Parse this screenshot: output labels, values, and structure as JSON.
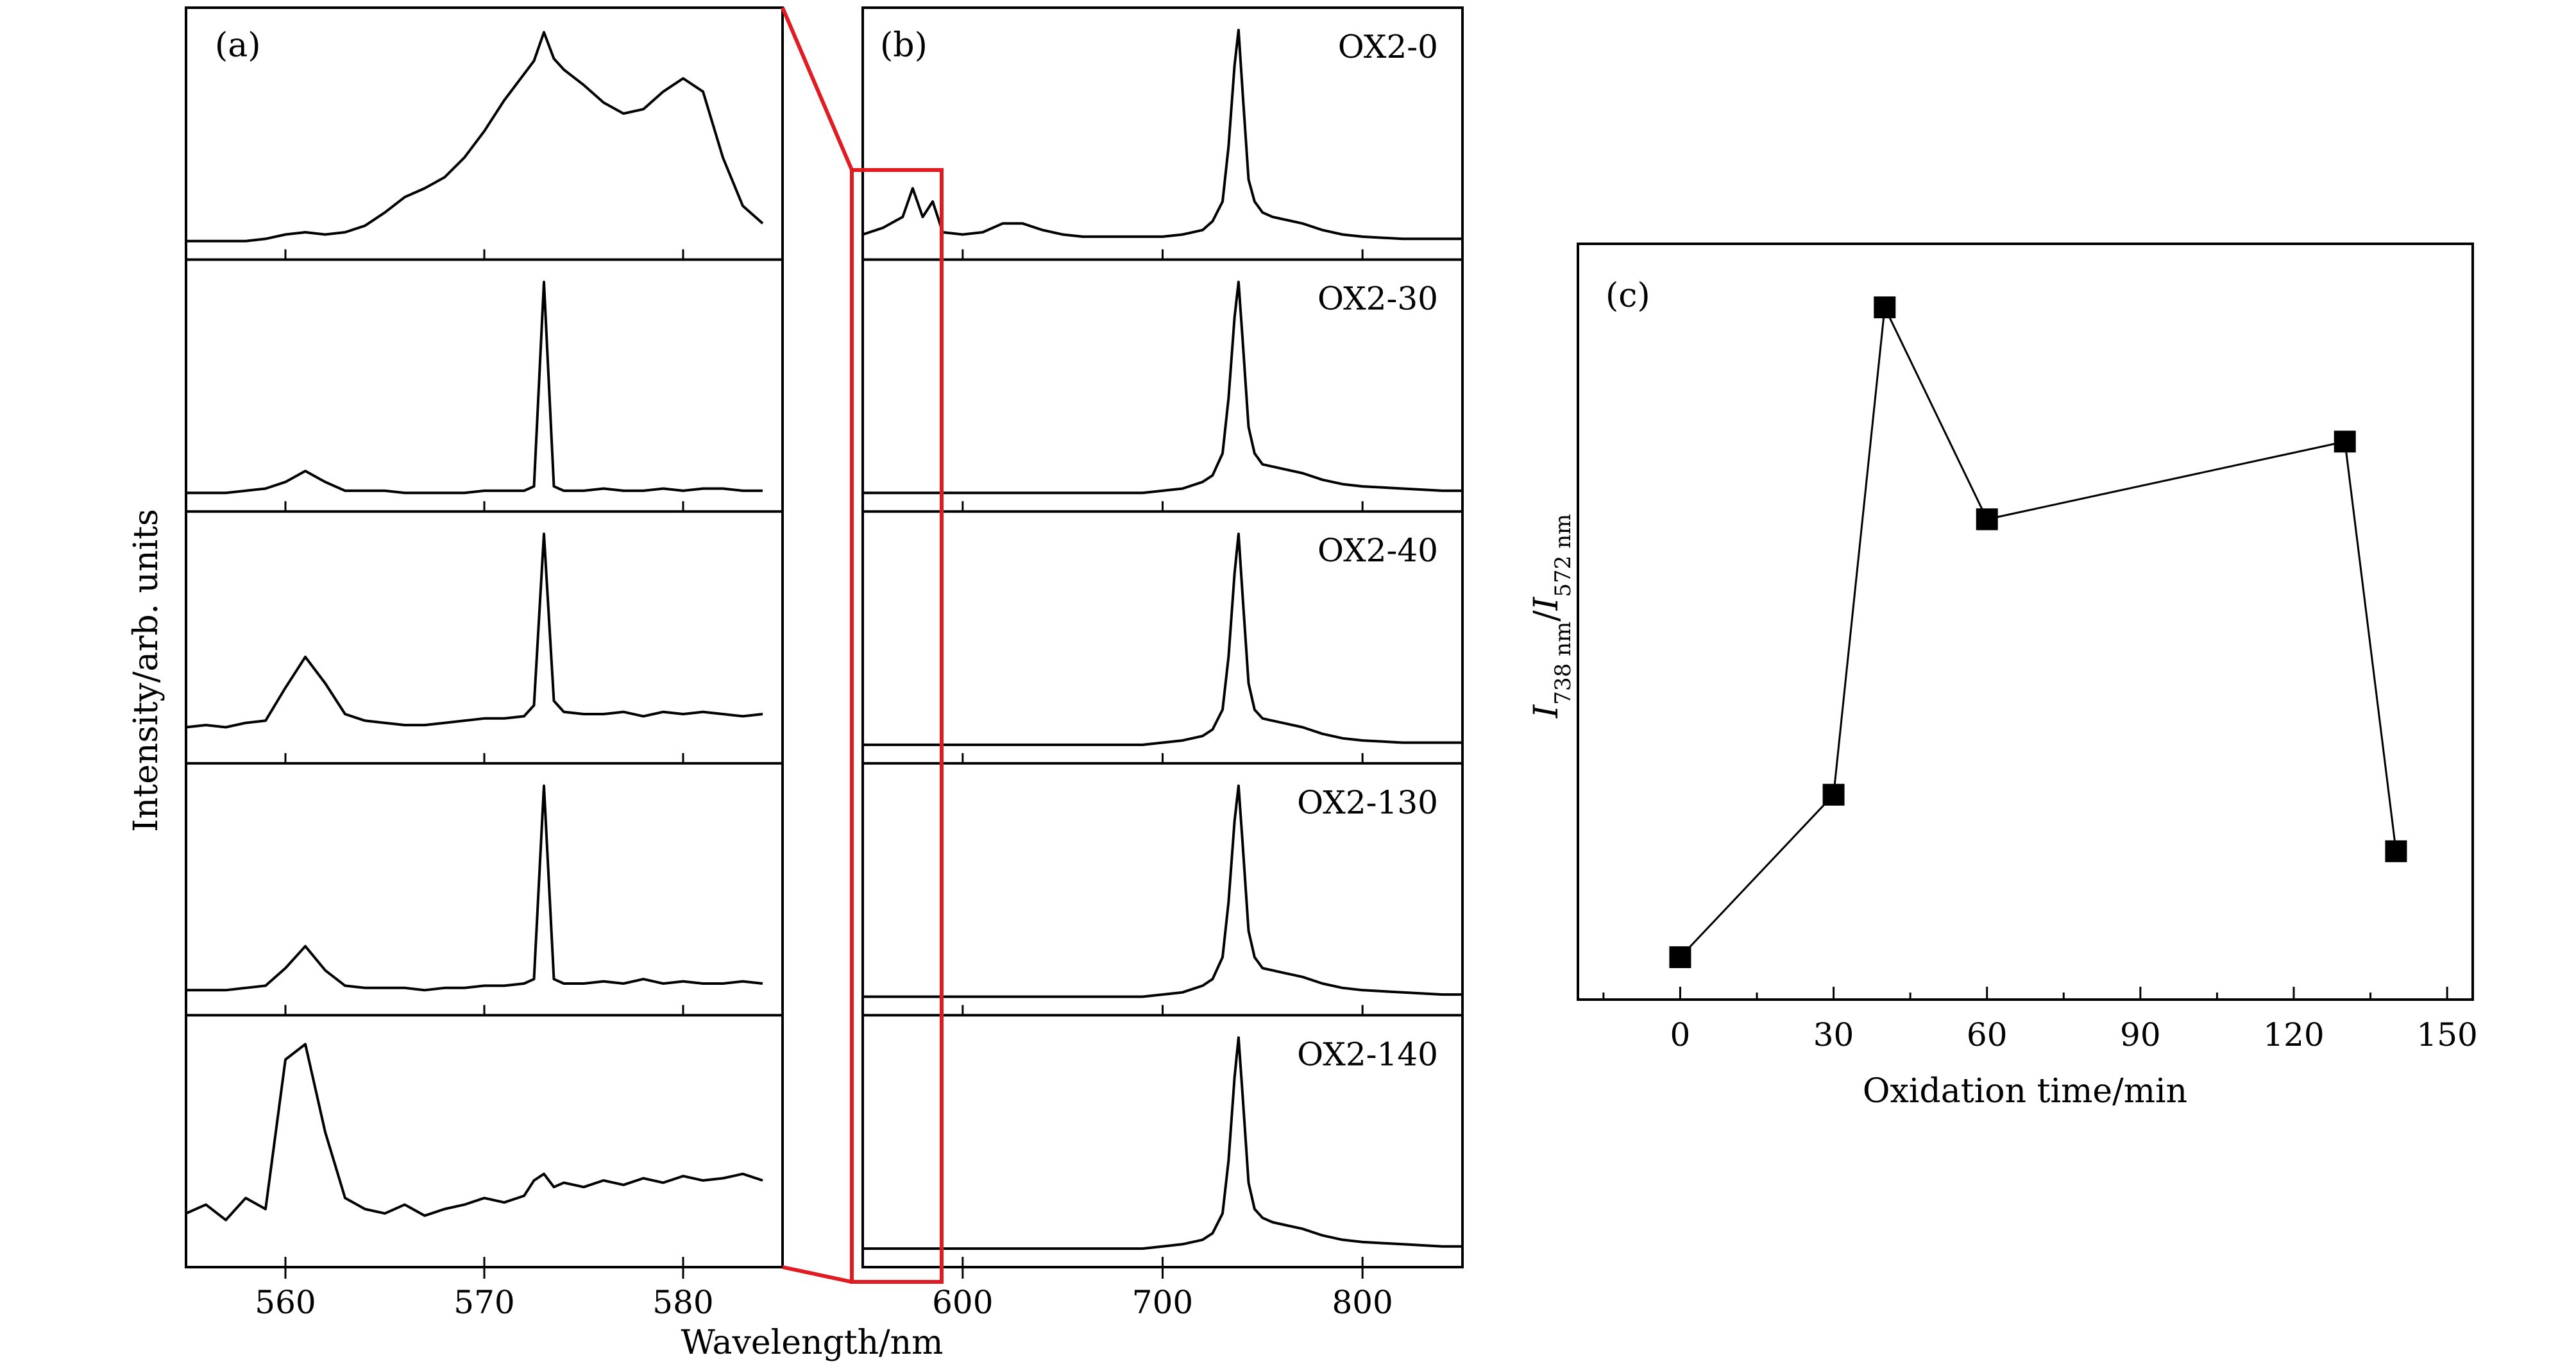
{
  "chart_data": [
    {
      "id": "a",
      "type": "line",
      "panel_label": "(a)",
      "subplots": 5,
      "x": [
        555,
        556,
        557,
        558,
        559,
        560,
        561,
        562,
        563,
        564,
        565,
        566,
        567,
        568,
        569,
        570,
        571,
        572,
        572.5,
        573,
        573.5,
        574,
        575,
        576,
        577,
        578,
        579,
        580,
        581,
        582,
        583,
        584
      ],
      "series": [
        {
          "name": "OX2-0",
          "values": [
            0.02,
            0.02,
            0.02,
            0.02,
            0.03,
            0.05,
            0.06,
            0.05,
            0.06,
            0.09,
            0.15,
            0.22,
            0.26,
            0.31,
            0.4,
            0.52,
            0.66,
            0.78,
            0.84,
            0.97,
            0.85,
            0.8,
            0.73,
            0.65,
            0.6,
            0.62,
            0.7,
            0.76,
            0.7,
            0.4,
            0.18,
            0.1
          ]
        },
        {
          "name": "OX2-30",
          "values": [
            0.02,
            0.02,
            0.02,
            0.03,
            0.04,
            0.07,
            0.12,
            0.07,
            0.03,
            0.03,
            0.03,
            0.02,
            0.02,
            0.02,
            0.02,
            0.03,
            0.03,
            0.03,
            0.05,
            0.98,
            0.05,
            0.03,
            0.03,
            0.04,
            0.03,
            0.03,
            0.04,
            0.03,
            0.04,
            0.04,
            0.03,
            0.03
          ]
        },
        {
          "name": "OX2-40",
          "values": [
            0.1,
            0.11,
            0.1,
            0.12,
            0.13,
            0.28,
            0.42,
            0.3,
            0.16,
            0.13,
            0.12,
            0.11,
            0.11,
            0.12,
            0.13,
            0.14,
            0.14,
            0.15,
            0.2,
            0.98,
            0.22,
            0.17,
            0.16,
            0.16,
            0.17,
            0.15,
            0.17,
            0.16,
            0.17,
            0.16,
            0.15,
            0.16
          ]
        },
        {
          "name": "OX2-130",
          "values": [
            0.05,
            0.05,
            0.05,
            0.06,
            0.07,
            0.15,
            0.25,
            0.14,
            0.07,
            0.06,
            0.06,
            0.06,
            0.05,
            0.06,
            0.06,
            0.07,
            0.07,
            0.08,
            0.1,
            0.98,
            0.1,
            0.08,
            0.08,
            0.09,
            0.08,
            0.1,
            0.08,
            0.09,
            0.08,
            0.08,
            0.09,
            0.08
          ]
        },
        {
          "name": "OX2-140",
          "values": [
            0.18,
            0.22,
            0.15,
            0.25,
            0.2,
            0.88,
            0.95,
            0.55,
            0.25,
            0.2,
            0.18,
            0.22,
            0.17,
            0.2,
            0.22,
            0.25,
            0.23,
            0.26,
            0.33,
            0.36,
            0.3,
            0.32,
            0.3,
            0.33,
            0.31,
            0.34,
            0.32,
            0.35,
            0.33,
            0.34,
            0.36,
            0.33
          ]
        }
      ],
      "xlim": [
        555,
        585
      ],
      "xticks": [
        560,
        570,
        580
      ],
      "xlabel": "Wavelength/nm",
      "ylabel": "Intensity/arb. units"
    },
    {
      "id": "b",
      "type": "line",
      "panel_label": "(b)",
      "subplots": 5,
      "x": [
        550,
        560,
        570,
        575,
        580,
        585,
        590,
        600,
        610,
        620,
        630,
        640,
        650,
        660,
        670,
        680,
        690,
        700,
        710,
        720,
        725,
        730,
        733,
        736,
        738,
        740,
        743,
        746,
        750,
        755,
        760,
        770,
        780,
        790,
        800,
        820,
        840,
        850
      ],
      "series": [
        {
          "name": "OX2-0",
          "values": [
            0.05,
            0.08,
            0.13,
            0.26,
            0.13,
            0.2,
            0.06,
            0.05,
            0.06,
            0.1,
            0.1,
            0.07,
            0.05,
            0.04,
            0.04,
            0.04,
            0.04,
            0.04,
            0.05,
            0.07,
            0.11,
            0.2,
            0.45,
            0.82,
            0.98,
            0.7,
            0.3,
            0.2,
            0.15,
            0.13,
            0.12,
            0.1,
            0.07,
            0.05,
            0.04,
            0.03,
            0.03,
            0.03
          ]
        },
        {
          "name": "OX2-30",
          "values": [
            0.02,
            0.02,
            0.02,
            0.02,
            0.02,
            0.02,
            0.02,
            0.02,
            0.02,
            0.02,
            0.02,
            0.02,
            0.02,
            0.02,
            0.02,
            0.02,
            0.02,
            0.03,
            0.04,
            0.07,
            0.1,
            0.2,
            0.45,
            0.82,
            0.98,
            0.72,
            0.32,
            0.2,
            0.15,
            0.14,
            0.13,
            0.11,
            0.08,
            0.06,
            0.05,
            0.04,
            0.03,
            0.03
          ]
        },
        {
          "name": "OX2-40",
          "values": [
            0.02,
            0.02,
            0.02,
            0.02,
            0.02,
            0.02,
            0.02,
            0.02,
            0.02,
            0.02,
            0.02,
            0.02,
            0.02,
            0.02,
            0.02,
            0.02,
            0.02,
            0.03,
            0.04,
            0.06,
            0.09,
            0.18,
            0.42,
            0.8,
            0.98,
            0.7,
            0.3,
            0.18,
            0.14,
            0.13,
            0.12,
            0.1,
            0.07,
            0.05,
            0.04,
            0.03,
            0.03,
            0.03
          ]
        },
        {
          "name": "OX2-130",
          "values": [
            0.02,
            0.02,
            0.02,
            0.02,
            0.02,
            0.02,
            0.02,
            0.02,
            0.02,
            0.02,
            0.02,
            0.02,
            0.02,
            0.02,
            0.02,
            0.02,
            0.02,
            0.03,
            0.04,
            0.07,
            0.1,
            0.2,
            0.45,
            0.82,
            0.98,
            0.72,
            0.32,
            0.2,
            0.15,
            0.14,
            0.13,
            0.11,
            0.08,
            0.06,
            0.05,
            0.04,
            0.03,
            0.03
          ]
        },
        {
          "name": "OX2-140",
          "values": [
            0.02,
            0.02,
            0.02,
            0.02,
            0.02,
            0.02,
            0.02,
            0.02,
            0.02,
            0.02,
            0.02,
            0.02,
            0.02,
            0.02,
            0.02,
            0.02,
            0.02,
            0.03,
            0.04,
            0.06,
            0.09,
            0.18,
            0.42,
            0.8,
            0.98,
            0.72,
            0.32,
            0.2,
            0.16,
            0.14,
            0.13,
            0.11,
            0.08,
            0.06,
            0.05,
            0.04,
            0.03,
            0.03
          ]
        }
      ],
      "xlim": [
        550,
        850
      ],
      "xticks": [
        600,
        700,
        800
      ],
      "zoom_box_xrange": [
        555,
        585
      ]
    },
    {
      "id": "c",
      "type": "scatter",
      "panel_label": "(c)",
      "x": [
        0,
        30,
        40,
        60,
        130,
        140
      ],
      "y": [
        0.6,
        2.9,
        9.8,
        6.8,
        7.9,
        2.1
      ],
      "connected": true,
      "marker": "square",
      "xlim": [
        -20,
        155
      ],
      "ylim": [
        0,
        10.7
      ],
      "xticks": [
        0,
        30,
        60,
        90,
        120,
        150
      ],
      "xlabel": "Oxidation time/min",
      "ylabel_parts": {
        "base1": "I",
        "sub1": "738 nm",
        "slash": "/",
        "base2": "I",
        "sub2": "572 nm"
      }
    }
  ],
  "colors": {
    "line": "#000000",
    "zoom_box": "#e01b22",
    "background": "#ffffff"
  }
}
